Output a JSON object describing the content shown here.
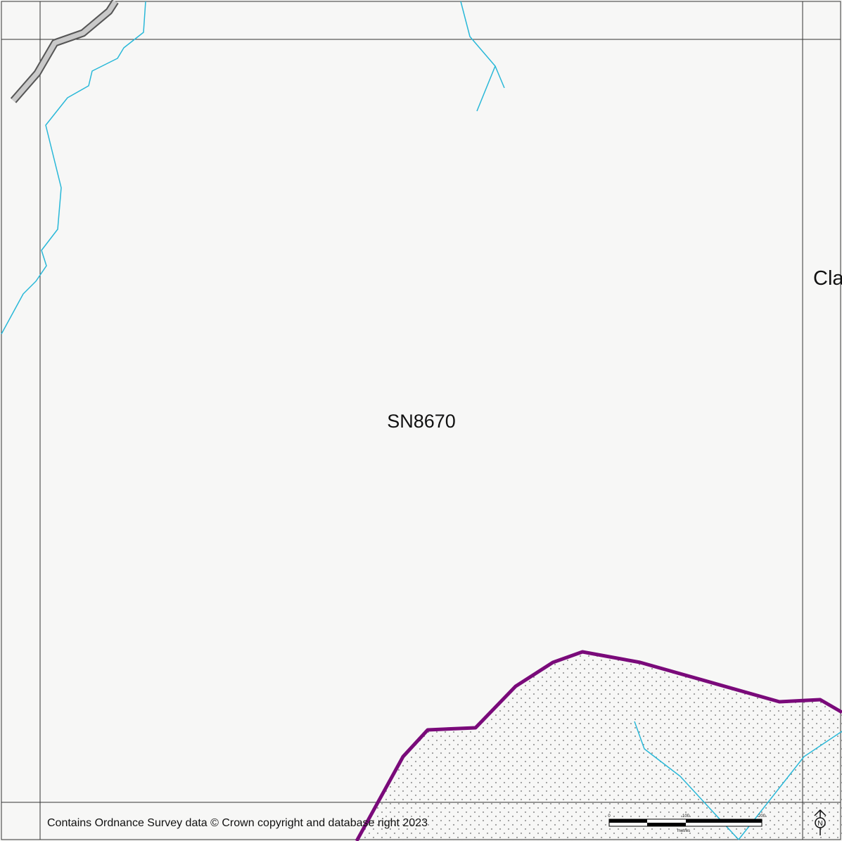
{
  "map": {
    "grid_square_label": "SN8670",
    "partial_place_label": "Cla",
    "attribution": "Contains Ordnance Survey data © Crown copyright and database right 2023",
    "scale_bar": {
      "ticks": [
        "0",
        "100",
        "200"
      ],
      "unit": "metres"
    },
    "north_arrow": {
      "icon": "north-arrow-icon",
      "label": "N"
    },
    "colors": {
      "background": "#f7f7f6",
      "grid_line": "#333333",
      "stream": "#29b8d8",
      "road_fill": "#c9c9c9",
      "road_casing": "#555555",
      "boundary": "#7a0a7a",
      "stipple": "#9a9a9a"
    }
  }
}
